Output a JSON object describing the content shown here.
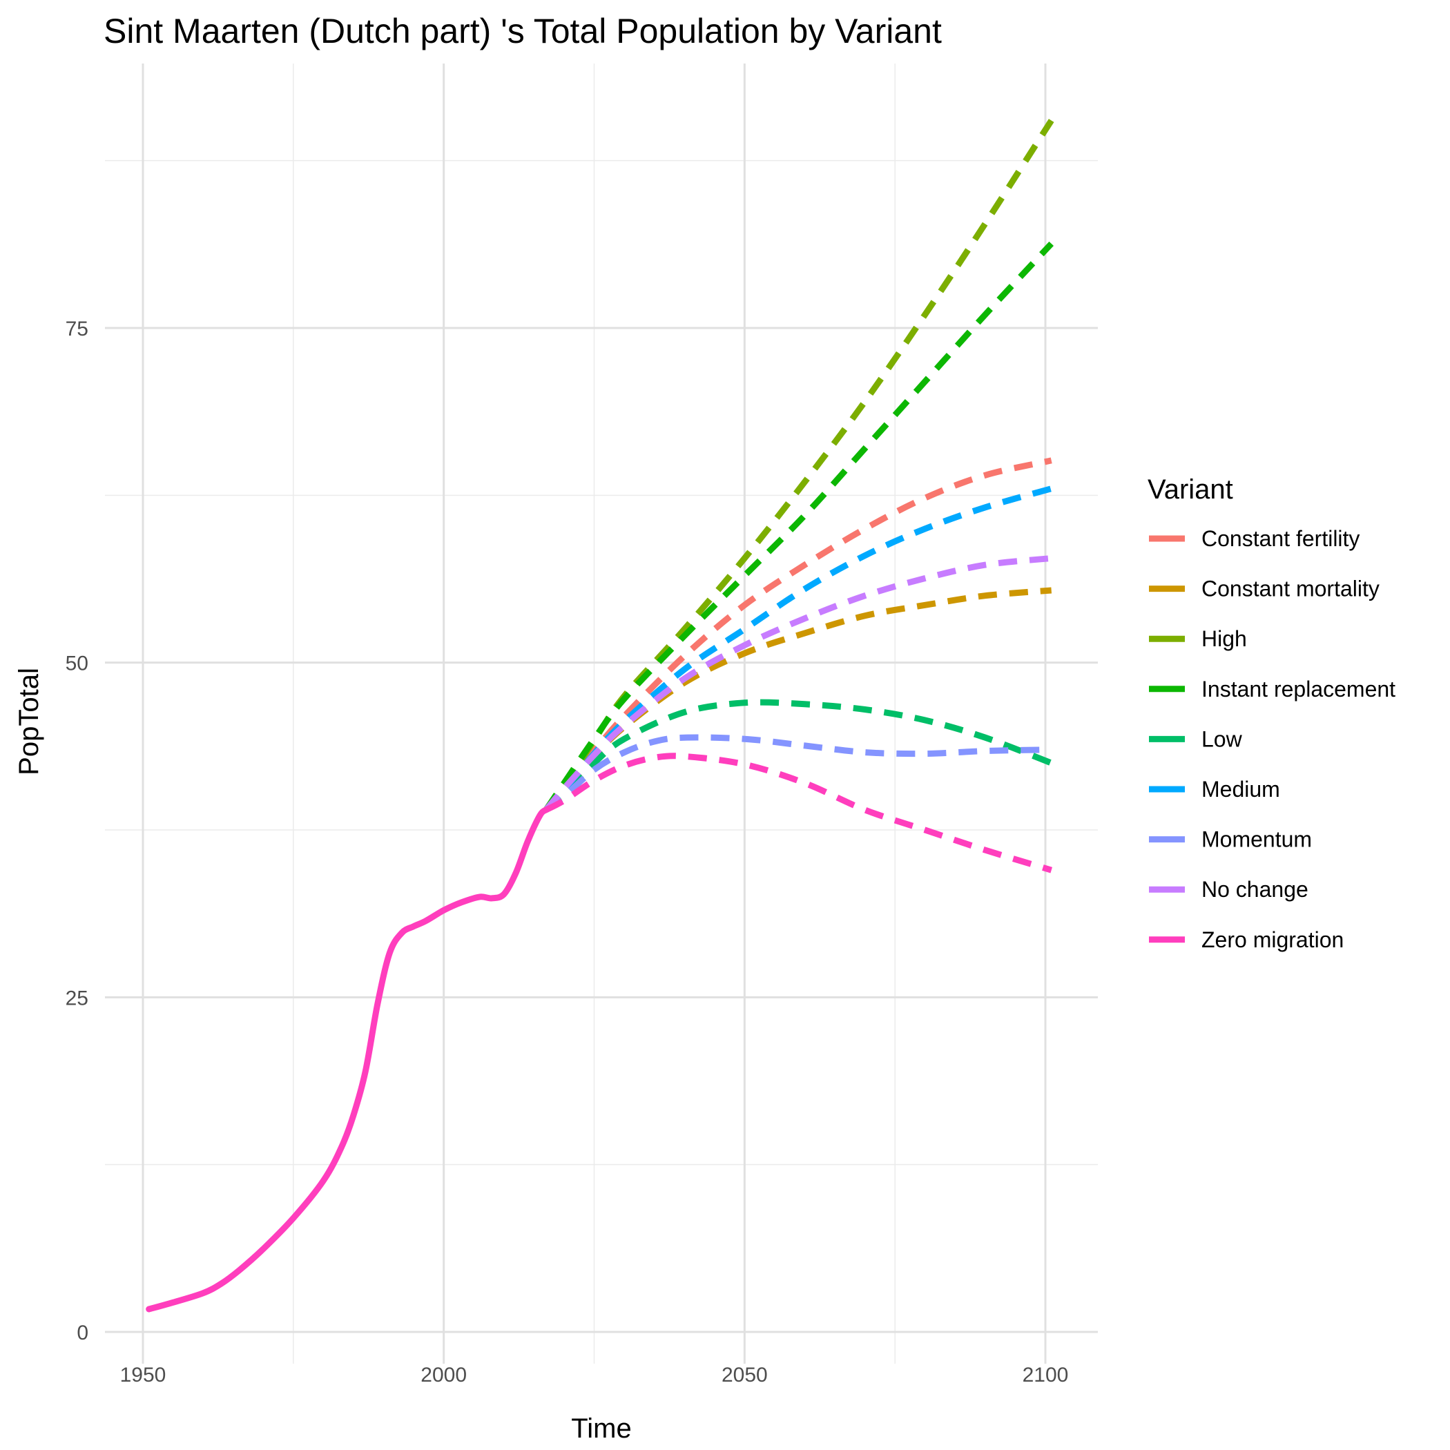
{
  "chart_data": {
    "type": "line",
    "title": "Sint Maarten (Dutch part) 's Total Population by Variant",
    "xlabel": "Time",
    "ylabel": "PopTotal",
    "xlim": [
      1950,
      2100
    ],
    "ylim": [
      0,
      100
    ],
    "x_ticks": [
      1950,
      2000,
      2050,
      2100
    ],
    "x_tick_labels": [
      "1950",
      "2000",
      "2050",
      "2100"
    ],
    "y_ticks": [
      0,
      25,
      50,
      75
    ],
    "y_tick_labels": [
      "0",
      "25",
      "50",
      "75"
    ],
    "grid": true,
    "legend": {
      "title": "Variant",
      "placement": "right"
    },
    "history": {
      "name": "Zero migration",
      "color": "#FF3EBD",
      "points": [
        [
          1951,
          1.7
        ],
        [
          1955,
          2.2
        ],
        [
          1960,
          2.9
        ],
        [
          1963,
          3.6
        ],
        [
          1966,
          4.6
        ],
        [
          1970,
          6.2
        ],
        [
          1975,
          8.5
        ],
        [
          1980,
          11.3
        ],
        [
          1983,
          13.8
        ],
        [
          1985,
          16.2
        ],
        [
          1987,
          19.5
        ],
        [
          1989,
          24.5
        ],
        [
          1991,
          28.3
        ],
        [
          1993,
          29.8
        ],
        [
          1995,
          30.3
        ],
        [
          1997,
          30.7
        ],
        [
          2000,
          31.5
        ],
        [
          2003,
          32.1
        ],
        [
          2006,
          32.5
        ],
        [
          2008,
          32.4
        ],
        [
          2010,
          32.7
        ],
        [
          2012,
          34.3
        ],
        [
          2014,
          36.7
        ],
        [
          2016,
          38.6
        ],
        [
          2017,
          39.0
        ]
      ]
    },
    "series": [
      {
        "name": "Constant fertility",
        "color": "#F8766D",
        "points": [
          [
            2017,
            39.0
          ],
          [
            2020,
            40.6
          ],
          [
            2025,
            43.4
          ],
          [
            2030,
            46.0
          ],
          [
            2040,
            50.5
          ],
          [
            2050,
            54.3
          ],
          [
            2060,
            57.3
          ],
          [
            2070,
            60.0
          ],
          [
            2080,
            62.3
          ],
          [
            2090,
            64.0
          ],
          [
            2101,
            65.1
          ]
        ]
      },
      {
        "name": "Constant mortality",
        "color": "#CD9600",
        "points": [
          [
            2017,
            39.0
          ],
          [
            2020,
            40.4
          ],
          [
            2025,
            43.0
          ],
          [
            2030,
            45.2
          ],
          [
            2040,
            48.5
          ],
          [
            2050,
            50.7
          ],
          [
            2060,
            52.2
          ],
          [
            2070,
            53.5
          ],
          [
            2080,
            54.3
          ],
          [
            2090,
            55.0
          ],
          [
            2101,
            55.4
          ]
        ]
      },
      {
        "name": "High",
        "color": "#7CAE00",
        "points": [
          [
            2017,
            39.0
          ],
          [
            2020,
            40.8
          ],
          [
            2025,
            44.2
          ],
          [
            2030,
            47.5
          ],
          [
            2040,
            52.5
          ],
          [
            2050,
            57.8
          ],
          [
            2060,
            63.5
          ],
          [
            2070,
            69.5
          ],
          [
            2080,
            76.0
          ],
          [
            2090,
            82.8
          ],
          [
            2101,
            90.5
          ]
        ]
      },
      {
        "name": "Instant replacement",
        "color": "#0CB702",
        "points": [
          [
            2017,
            39.0
          ],
          [
            2020,
            41.0
          ],
          [
            2025,
            44.3
          ],
          [
            2030,
            47.3
          ],
          [
            2040,
            52.0
          ],
          [
            2050,
            56.5
          ],
          [
            2060,
            61.0
          ],
          [
            2070,
            66.0
          ],
          [
            2080,
            71.0
          ],
          [
            2090,
            76.0
          ],
          [
            2101,
            81.3
          ]
        ]
      },
      {
        "name": "Low",
        "color": "#00BE67",
        "points": [
          [
            2017,
            39.0
          ],
          [
            2020,
            40.2
          ],
          [
            2025,
            42.5
          ],
          [
            2030,
            44.3
          ],
          [
            2040,
            46.3
          ],
          [
            2050,
            47.0
          ],
          [
            2060,
            46.9
          ],
          [
            2070,
            46.5
          ],
          [
            2080,
            45.7
          ],
          [
            2090,
            44.4
          ],
          [
            2101,
            42.5
          ]
        ]
      },
      {
        "name": "Medium",
        "color": "#00A9FF",
        "points": [
          [
            2017,
            39.0
          ],
          [
            2020,
            40.5
          ],
          [
            2025,
            43.2
          ],
          [
            2030,
            45.6
          ],
          [
            2040,
            49.5
          ],
          [
            2050,
            52.5
          ],
          [
            2060,
            55.5
          ],
          [
            2070,
            58.0
          ],
          [
            2080,
            60.0
          ],
          [
            2090,
            61.6
          ],
          [
            2101,
            63.0
          ]
        ]
      },
      {
        "name": "Momentum",
        "color": "#8494FF",
        "points": [
          [
            2017,
            39.0
          ],
          [
            2020,
            40.0
          ],
          [
            2025,
            42.0
          ],
          [
            2030,
            43.3
          ],
          [
            2035,
            44.1
          ],
          [
            2040,
            44.4
          ],
          [
            2050,
            44.3
          ],
          [
            2060,
            43.8
          ],
          [
            2070,
            43.3
          ],
          [
            2080,
            43.2
          ],
          [
            2090,
            43.4
          ],
          [
            2101,
            43.5
          ]
        ]
      },
      {
        "name": "No change",
        "color": "#C77CFF",
        "points": [
          [
            2017,
            39.0
          ],
          [
            2020,
            40.6
          ],
          [
            2025,
            43.1
          ],
          [
            2030,
            45.3
          ],
          [
            2040,
            48.8
          ],
          [
            2050,
            51.3
          ],
          [
            2060,
            53.3
          ],
          [
            2070,
            55.0
          ],
          [
            2080,
            56.3
          ],
          [
            2090,
            57.3
          ],
          [
            2101,
            57.8
          ]
        ]
      },
      {
        "name": "Zero migration",
        "color": "#FF3EBD",
        "points": [
          [
            2017,
            39.0
          ],
          [
            2020,
            39.7
          ],
          [
            2025,
            41.2
          ],
          [
            2030,
            42.3
          ],
          [
            2035,
            42.9
          ],
          [
            2040,
            43.0
          ],
          [
            2050,
            42.4
          ],
          [
            2060,
            41.0
          ],
          [
            2070,
            39.0
          ],
          [
            2080,
            37.5
          ],
          [
            2090,
            36.0
          ],
          [
            2101,
            34.5
          ]
        ]
      }
    ]
  }
}
